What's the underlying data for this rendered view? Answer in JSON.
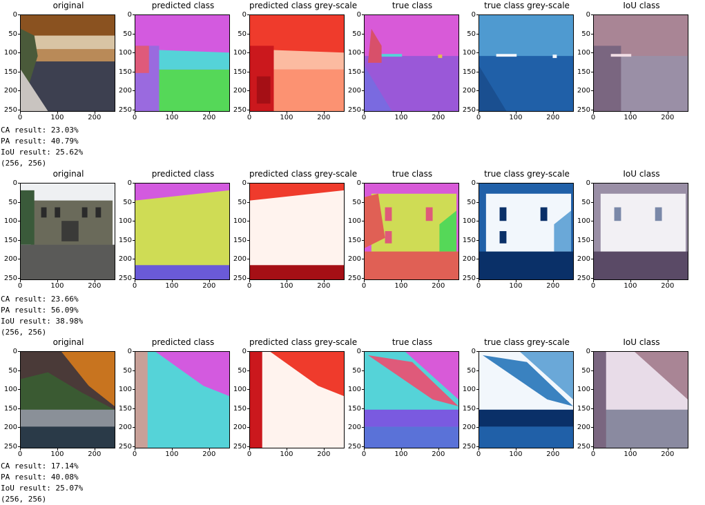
{
  "yticks": [
    "0",
    "50",
    "100",
    "150",
    "200",
    "250"
  ],
  "xticks": [
    "0",
    "100",
    "200"
  ],
  "panel_titles": [
    "original",
    "predicted class",
    "predicted class grey-scale",
    "true class",
    "true class grey-scale",
    "IoU class"
  ],
  "results": [
    {
      "ca": "CA result: 23.03%",
      "pa": "PA result: 40.79%",
      "iou": "IoU result: 25.62%",
      "shape": "(256, 256)"
    },
    {
      "ca": "CA result: 23.66%",
      "pa": "PA result: 56.09%",
      "iou": "IoU result: 38.98%",
      "shape": "(256, 256)"
    },
    {
      "ca": "CA result: 17.14%",
      "pa": "PA result: 40.08%",
      "iou": "IoU result: 25.07%",
      "shape": "(256, 256)"
    }
  ]
}
